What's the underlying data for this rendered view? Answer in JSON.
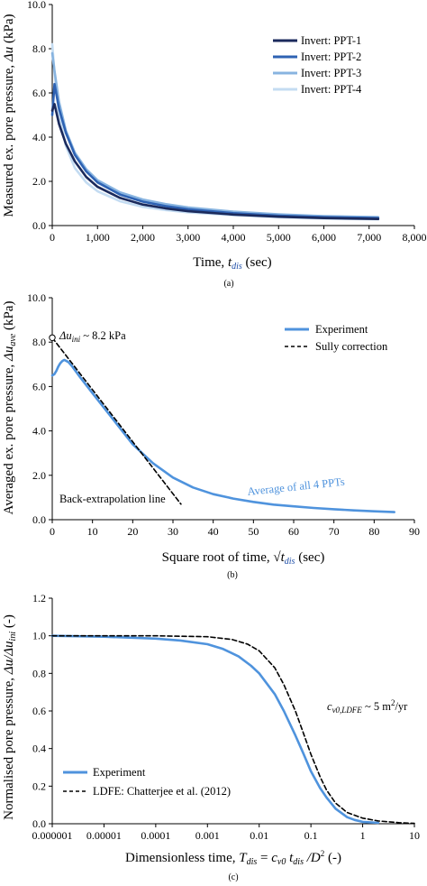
{
  "colors": {
    "ppt1": "#1b2a5c",
    "ppt2": "#2e62b3",
    "ppt3": "#88b4e0",
    "ppt4": "#c4dcf2",
    "experiment": "#4f93dd",
    "dashed": "#000000"
  },
  "chart_data": [
    {
      "type": "line",
      "panel_label": "(a)",
      "xlabel_main": "Time, ",
      "xlabel_var": "t",
      "xlabel_sub": "dis",
      "xlabel_tail": " (sec)",
      "ylabel_main": "Measured ex. pore pressure, ",
      "ylabel_var": "Δu",
      "ylabel_tail": " (kPa)",
      "xlim": [
        0,
        8000
      ],
      "ylim": [
        0,
        10
      ],
      "xticks": [
        0,
        1000,
        2000,
        3000,
        4000,
        5000,
        6000,
        7000,
        8000
      ],
      "xtick_labels": [
        "0",
        "1,000",
        "2,000",
        "3,000",
        "4,000",
        "5,000",
        "6,000",
        "7,000",
        "8,000"
      ],
      "yticks": [
        0,
        2,
        4,
        6,
        8,
        10
      ],
      "ytick_labels": [
        "0.0",
        "2.0",
        "4.0",
        "6.0",
        "8.0",
        "10.0"
      ],
      "legend_position": "top-right",
      "series": [
        {
          "name": "Invert: PPT-1",
          "x": [
            0,
            50,
            150,
            300,
            500,
            750,
            1000,
            1500,
            2000,
            2500,
            3000,
            4000,
            5000,
            6000,
            7200
          ],
          "y": [
            5.2,
            5.5,
            4.6,
            3.7,
            2.9,
            2.2,
            1.75,
            1.25,
            0.95,
            0.78,
            0.65,
            0.5,
            0.4,
            0.34,
            0.3
          ]
        },
        {
          "name": "Invert: PPT-2",
          "x": [
            0,
            50,
            150,
            300,
            500,
            750,
            1000,
            1500,
            2000,
            2500,
            3000,
            4000,
            5000,
            6000,
            7200
          ],
          "y": [
            5.0,
            6.4,
            5.3,
            4.2,
            3.2,
            2.45,
            1.95,
            1.4,
            1.08,
            0.88,
            0.74,
            0.56,
            0.45,
            0.38,
            0.34
          ]
        },
        {
          "name": "Invert: PPT-3",
          "x": [
            0,
            50,
            150,
            300,
            500,
            750,
            1000,
            1500,
            2000,
            2500,
            3000,
            4000,
            5000,
            6000,
            7200
          ],
          "y": [
            7.8,
            7.0,
            5.6,
            4.3,
            3.3,
            2.55,
            2.05,
            1.5,
            1.18,
            0.97,
            0.82,
            0.63,
            0.51,
            0.43,
            0.38
          ]
        },
        {
          "name": "Invert: PPT-4",
          "x": [
            0,
            50,
            150,
            300,
            500,
            750,
            1000,
            1500,
            2000,
            2500,
            3000,
            4000,
            5000,
            6000,
            7200
          ],
          "y": [
            8.2,
            6.9,
            5.0,
            3.6,
            2.6,
            1.95,
            1.55,
            1.1,
            0.85,
            0.7,
            0.6,
            0.47,
            0.38,
            0.32,
            0.28
          ]
        }
      ]
    },
    {
      "type": "line",
      "panel_label": "(b)",
      "xlabel_main": "Square root of time, ",
      "xlabel_sqrt": "√",
      "xlabel_var": "t",
      "xlabel_sub": "dis",
      "xlabel_tail": " (sec)",
      "ylabel_main": "Averaged ex. pore pressure, ",
      "ylabel_var": "Δu",
      "ylabel_sub": "ave",
      "ylabel_tail": " (kPa)",
      "xlim": [
        0,
        90
      ],
      "ylim": [
        0,
        10
      ],
      "xticks": [
        0,
        10,
        20,
        30,
        40,
        50,
        60,
        70,
        80,
        90
      ],
      "xtick_labels": [
        "0",
        "10",
        "20",
        "30",
        "40",
        "50",
        "60",
        "70",
        "80",
        "90"
      ],
      "yticks": [
        0,
        2,
        4,
        6,
        8,
        10
      ],
      "ytick_labels": [
        "0.0",
        "2.0",
        "4.0",
        "6.0",
        "8.0",
        "10.0"
      ],
      "legend_position": "top-right",
      "series": [
        {
          "name": "Experiment",
          "style": "solid",
          "x": [
            0,
            0.5,
            1,
            1.5,
            2,
            2.5,
            3,
            4,
            5,
            7,
            10,
            15,
            20,
            25,
            30,
            35,
            40,
            45,
            50,
            55,
            60,
            65,
            70,
            75,
            80,
            85
          ],
          "y": [
            6.5,
            6.55,
            6.7,
            6.9,
            7.05,
            7.15,
            7.2,
            7.1,
            6.9,
            6.4,
            5.7,
            4.55,
            3.4,
            2.55,
            1.9,
            1.45,
            1.15,
            0.95,
            0.8,
            0.68,
            0.6,
            0.53,
            0.47,
            0.42,
            0.38,
            0.34
          ]
        },
        {
          "name": "Sully correction",
          "style": "dashed",
          "x": [
            0,
            32
          ],
          "y": [
            8.2,
            0.7
          ]
        }
      ],
      "annotations": {
        "delta_u_var": "Δu",
        "delta_u_sub": "ini",
        "delta_u_value": " ~ 8.2 kPa",
        "back_extrapolation": "Back-extrapolation line",
        "average_label": "Average of all 4 PPTs"
      }
    },
    {
      "type": "line",
      "panel_label": "(c)",
      "xscale": "log",
      "xlabel_main": "Dimensionless time,  ",
      "xlabel_T": "T",
      "xlabel_Tsub": "dis",
      "xlabel_eq": " = ",
      "xlabel_c": "c",
      "xlabel_csub": "v0",
      "xlabel_t": " t",
      "xlabel_tsub": "dis",
      "xlabel_D": " /D",
      "xlabel_pow": "2",
      "xlabel_tail": "  (-)",
      "ylabel_main": "Normalised pore pressure, ",
      "ylabel_var": "Δu/Δu",
      "ylabel_sub": "ini",
      "ylabel_tail": " (-)",
      "xlim": [
        1e-06,
        10
      ],
      "ylim": [
        0,
        1.2
      ],
      "xticks": [
        1e-06,
        1e-05,
        0.0001,
        0.001,
        0.01,
        0.1,
        1,
        10
      ],
      "xtick_labels": [
        "0.000001",
        "0.00001",
        "0.0001",
        "0.001",
        "0.01",
        "0.1",
        "1",
        "10"
      ],
      "yticks": [
        0,
        0.2,
        0.4,
        0.6,
        0.8,
        1.0,
        1.2
      ],
      "ytick_labels": [
        "0.0",
        "0.2",
        "0.4",
        "0.6",
        "0.8",
        "1.0",
        "1.2"
      ],
      "legend_position": "bottom-left",
      "series": [
        {
          "name": "Experiment",
          "style": "solid",
          "x": [
            1e-06,
            1e-05,
            0.0001,
            0.0003,
            0.001,
            0.002,
            0.004,
            0.007,
            0.01,
            0.02,
            0.03,
            0.05,
            0.07,
            0.1,
            0.15,
            0.2,
            0.3,
            0.5,
            0.7,
            1,
            2
          ],
          "y": [
            1.0,
            0.995,
            0.985,
            0.975,
            0.955,
            0.93,
            0.89,
            0.84,
            0.8,
            0.69,
            0.6,
            0.47,
            0.38,
            0.28,
            0.19,
            0.14,
            0.08,
            0.035,
            0.02,
            0.01,
            0.005
          ]
        },
        {
          "name": "LDFE: Chatterjee et al. (2012)",
          "style": "dashed",
          "x": [
            1e-06,
            0.0001,
            0.001,
            0.003,
            0.006,
            0.01,
            0.02,
            0.03,
            0.05,
            0.07,
            0.1,
            0.15,
            0.2,
            0.3,
            0.5,
            1,
            2,
            5,
            10
          ],
          "y": [
            1.0,
            1.0,
            0.995,
            0.98,
            0.955,
            0.92,
            0.83,
            0.74,
            0.6,
            0.49,
            0.37,
            0.25,
            0.18,
            0.11,
            0.06,
            0.03,
            0.015,
            0.006,
            0.002
          ]
        }
      ],
      "annotations": {
        "cv_var": "c",
        "cv_sub": "v0,LDFE",
        "cv_value": " ~ 5 m",
        "cv_pow": "2",
        "cv_unit": "/yr"
      }
    }
  ]
}
